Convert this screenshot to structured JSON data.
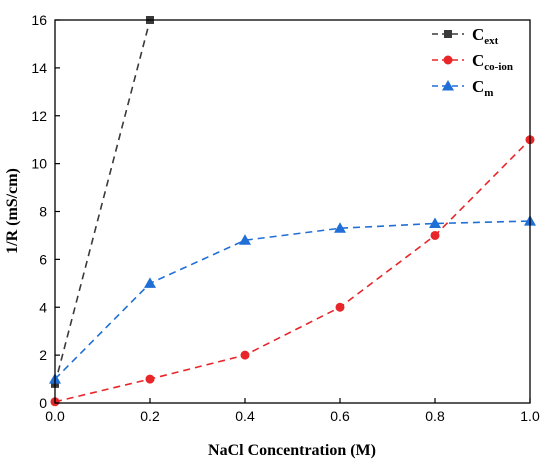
{
  "chart_data": {
    "type": "line",
    "xlabel": "NaCl Concentration (M)",
    "ylabel": "1/R (mS/cm)",
    "xlim": [
      0.0,
      1.0
    ],
    "ylim": [
      0,
      16
    ],
    "xticks": [
      "0.0",
      "0.2",
      "0.4",
      "0.6",
      "0.8",
      "1.0"
    ],
    "yticks": [
      "0",
      "2",
      "4",
      "6",
      "8",
      "10",
      "12",
      "14",
      "16"
    ],
    "grid": false,
    "legend_position": "top-right",
    "series": [
      {
        "name_main": "C",
        "name_sub": "ext",
        "color": "#3a3a3a",
        "marker": "square",
        "x": [
          0.0,
          0.2
        ],
        "y": [
          0.8,
          16.0
        ]
      },
      {
        "name_main": "C",
        "name_sub": "co-ion",
        "color": "#e8262a",
        "marker": "circle",
        "x": [
          0.0,
          0.2,
          0.4,
          0.6,
          0.8,
          1.0
        ],
        "y": [
          0.05,
          1.0,
          2.0,
          4.0,
          7.0,
          11.0
        ]
      },
      {
        "name_main": "C",
        "name_sub": "m",
        "color": "#1f6fd6",
        "marker": "triangle",
        "x": [
          0.0,
          0.2,
          0.4,
          0.6,
          0.8,
          1.0
        ],
        "y": [
          1.0,
          5.0,
          6.8,
          7.3,
          7.5,
          7.6
        ]
      }
    ]
  }
}
